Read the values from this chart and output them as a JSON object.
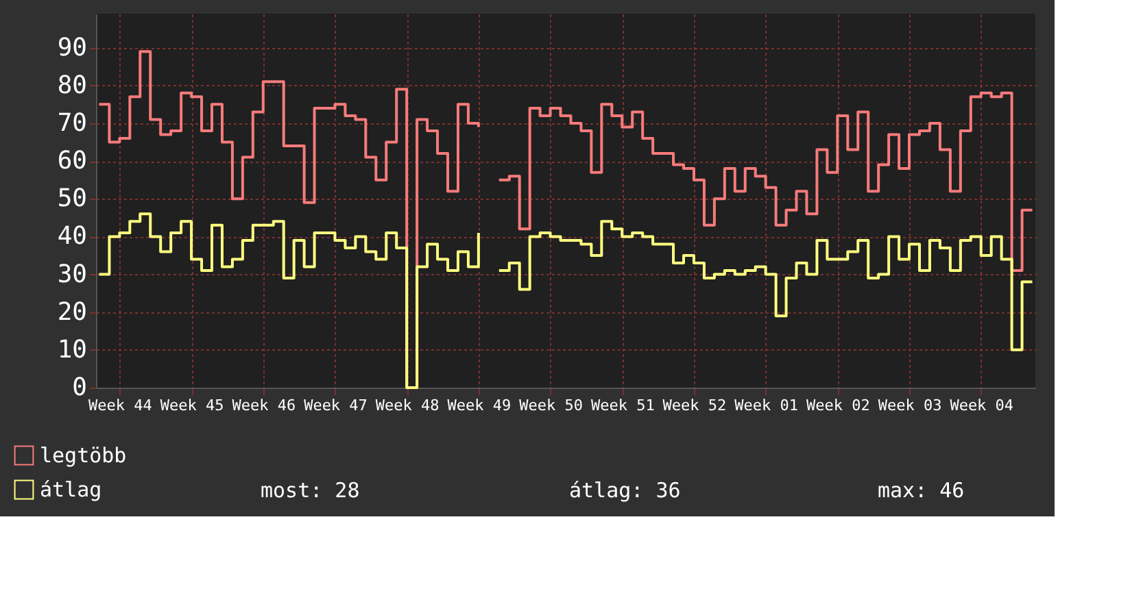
{
  "chart_data": {
    "type": "step",
    "categories": [
      null,
      null,
      "Week 44",
      null,
      null,
      null,
      null,
      null,
      null,
      "Week 45",
      null,
      null,
      null,
      null,
      null,
      null,
      "Week 46",
      null,
      null,
      null,
      null,
      null,
      null,
      "Week 47",
      null,
      null,
      null,
      null,
      null,
      null,
      "Week 48",
      null,
      null,
      null,
      null,
      null,
      null,
      "Week 49",
      null,
      null,
      null,
      null,
      null,
      null,
      "Week 50",
      null,
      null,
      null,
      null,
      null,
      null,
      "Week 51",
      null,
      null,
      null,
      null,
      null,
      null,
      "Week 52",
      null,
      null,
      null,
      null,
      null,
      null,
      "Week 01",
      null,
      null,
      null,
      null,
      null,
      null,
      "Week 02",
      null,
      null,
      null,
      null,
      null,
      null,
      "Week 03",
      null,
      null,
      null,
      null,
      null,
      null,
      "Week 04",
      null,
      null,
      null,
      null,
      null
    ],
    "series": [
      {
        "name": "legtöbb",
        "color": "#f77b7b",
        "values": [
          75,
          65,
          66,
          77,
          89,
          71,
          67,
          68,
          78,
          77,
          68,
          75,
          65,
          50,
          61,
          73,
          81,
          81,
          64,
          64,
          49,
          74,
          74,
          75,
          72,
          71,
          61,
          55,
          65,
          79,
          0,
          71,
          68,
          62,
          52,
          75,
          70,
          69,
          null,
          55,
          56,
          42,
          74,
          72,
          74,
          72,
          70,
          68,
          57,
          75,
          72,
          69,
          73,
          66,
          62,
          62,
          59,
          58,
          55,
          43,
          50,
          58,
          52,
          58,
          56,
          53,
          43,
          47,
          52,
          46,
          63,
          57,
          72,
          63,
          73,
          52,
          59,
          67,
          58,
          67,
          68,
          70,
          63,
          52,
          68,
          77,
          78,
          77,
          78,
          31,
          47,
          47
        ]
      },
      {
        "name": "átlag",
        "color": "#ffff80",
        "values": [
          30,
          40,
          41,
          44,
          46,
          40,
          36,
          41,
          44,
          34,
          31,
          43,
          32,
          34,
          39,
          43,
          43,
          44,
          29,
          39,
          32,
          41,
          41,
          39,
          37,
          40,
          36,
          34,
          41,
          37,
          0,
          32,
          38,
          34,
          31,
          36,
          32,
          41,
          null,
          31,
          33,
          26,
          40,
          41,
          40,
          39,
          39,
          38,
          35,
          44,
          42,
          40,
          41,
          40,
          38,
          38,
          33,
          35,
          33,
          29,
          30,
          31,
          30,
          31,
          32,
          30,
          19,
          29,
          33,
          30,
          39,
          34,
          34,
          36,
          39,
          29,
          30,
          40,
          34,
          38,
          31,
          39,
          37,
          31,
          39,
          40,
          35,
          40,
          34,
          10,
          28,
          28
        ]
      }
    ],
    "ylim": [
      0,
      99
    ],
    "yticks": [
      0,
      10,
      20,
      30,
      40,
      50,
      60,
      70,
      80,
      90
    ],
    "grid": true,
    "legend": "bottom left",
    "marker": "none",
    "line_style": "solid",
    "annotations": [
      "most: 28",
      "átlag: 36",
      "max: 46"
    ]
  }
}
